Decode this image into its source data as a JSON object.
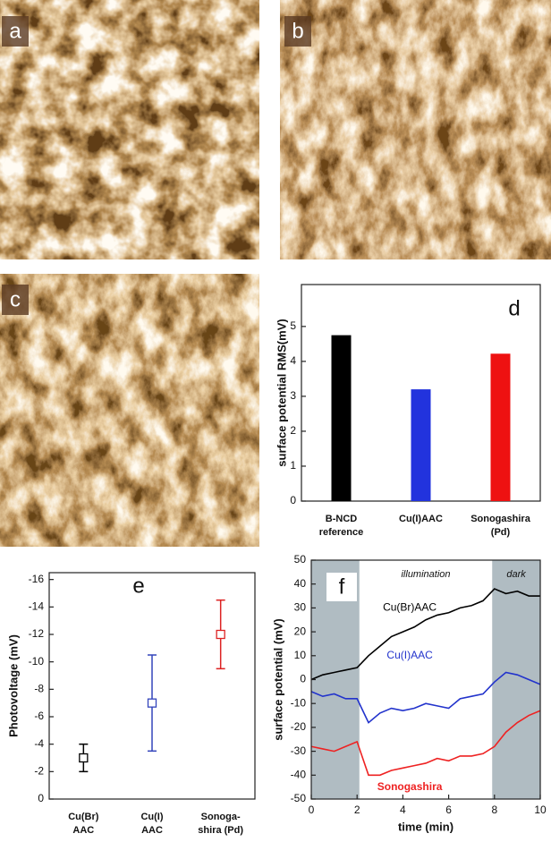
{
  "images": [
    {
      "label": "a"
    },
    {
      "label": "b"
    },
    {
      "label": "c"
    }
  ],
  "chart_data": [
    {
      "type": "bar",
      "label": "d",
      "ylabel": "surface potential RMS(mV)",
      "categories": [
        [
          "B-NCD",
          "reference"
        ],
        [
          "Cu(I)AAC"
        ],
        [
          "Sonogashira",
          "(Pd)"
        ]
      ],
      "values": [
        4.75,
        3.2,
        4.22
      ],
      "colors": [
        "#000000",
        "#2233dd",
        "#ee1111"
      ],
      "ylim": [
        0,
        6.2
      ],
      "yticks": [
        0,
        1,
        2,
        3,
        4,
        5
      ]
    },
    {
      "type": "errorbar",
      "label": "e",
      "ylabel": "Photovoltage (mV)",
      "categories": [
        [
          "Cu(Br)",
          "AAC"
        ],
        [
          "Cu(I)",
          "AAC"
        ],
        [
          "Sonoga-",
          "shira (Pd)"
        ]
      ],
      "values": [
        -3,
        -7,
        -12
      ],
      "errors": [
        1,
        3.5,
        2.5
      ],
      "colors": [
        "#000000",
        "#3344bb",
        "#dd2222"
      ],
      "ylim": [
        0,
        -16.5
      ],
      "yticks": [
        0,
        -2,
        -4,
        -6,
        -8,
        -10,
        -12,
        -14,
        -16
      ]
    },
    {
      "type": "line",
      "label": "f",
      "xlabel": "time (min)",
      "ylabel": "surface potential (mV)",
      "annotations": [
        "illumination",
        "dark"
      ],
      "shaded": [
        [
          0,
          2.1
        ],
        [
          7.9,
          10
        ]
      ],
      "x": [
        0,
        0.5,
        1,
        1.5,
        2,
        2.5,
        3,
        3.5,
        4,
        4.5,
        5,
        5.5,
        6,
        6.5,
        7,
        7.5,
        8,
        8.5,
        9,
        9.5,
        10
      ],
      "series": [
        {
          "name": "Cu(Br)AAC",
          "color": "#000000",
          "values": [
            0,
            2,
            3,
            4,
            5,
            10,
            14,
            18,
            20,
            22,
            25,
            27,
            28,
            30,
            31,
            33,
            38,
            36,
            37,
            35,
            35
          ]
        },
        {
          "name": "Cu(I)AAC",
          "color": "#2233cc",
          "values": [
            -5,
            -7,
            -6,
            -8,
            -8,
            -18,
            -14,
            -12,
            -13,
            -12,
            -10,
            -11,
            -12,
            -8,
            -7,
            -6,
            -1,
            3,
            2,
            0,
            -2
          ]
        },
        {
          "name": "Sonogashira",
          "color": "#ee2222",
          "values": [
            -28,
            -29,
            -30,
            -28,
            -26,
            -40,
            -40,
            -38,
            -37,
            -36,
            -35,
            -33,
            -34,
            -32,
            -32,
            -31,
            -28,
            -22,
            -18,
            -15,
            -13
          ]
        }
      ],
      "xlim": [
        0,
        10
      ],
      "ylim": [
        -50,
        50
      ],
      "xticks": [
        0,
        2,
        4,
        6,
        8,
        10
      ],
      "yticks": [
        -50,
        -40,
        -30,
        -20,
        -10,
        0,
        10,
        20,
        30,
        40,
        50
      ]
    }
  ]
}
